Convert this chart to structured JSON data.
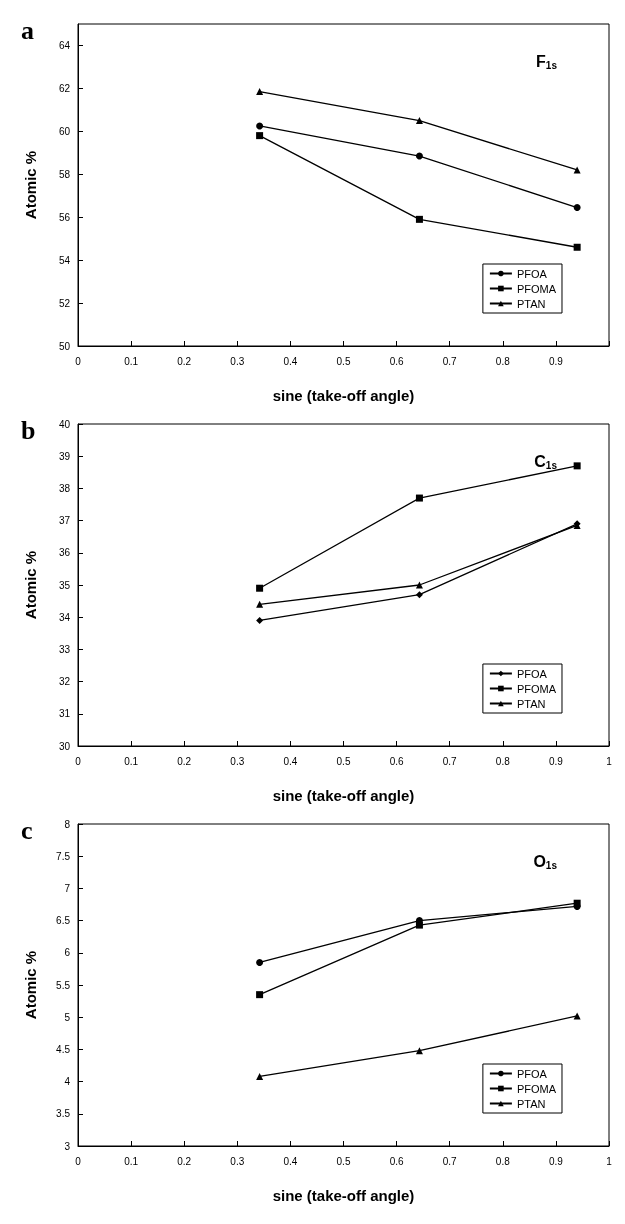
{
  "chart_data": [
    {
      "type": "line",
      "title": "a",
      "xlabel": "sine (take-off angle)",
      "ylabel": "Atomic %",
      "annotations": [
        "F$_{1s}$"
      ],
      "x": [
        0.342,
        0.643,
        0.94
      ],
      "series": [
        {
          "name": "PFOA",
          "color": "#000000",
          "marker": "circle",
          "values": [
            60.25,
            58.85,
            56.45
          ]
        },
        {
          "name": "PFOMA",
          "color": "#000000",
          "marker": "square",
          "values": [
            59.8,
            55.9,
            54.6
          ]
        },
        {
          "name": "PTAN",
          "color": "#000000",
          "marker": "triangle",
          "values": [
            61.85,
            60.5,
            58.2
          ]
        }
      ],
      "xlim": [
        0,
        1
      ],
      "xticks": [
        0,
        0.1,
        0.2,
        0.3,
        0.4,
        0.5,
        0.6,
        0.7,
        0.8,
        0.9,
        {
          "value": 1,
          "label": null
        }
      ],
      "ylim": [
        50,
        65
      ],
      "yticks": [
        50,
        52,
        54,
        56,
        58,
        60,
        62,
        64
      ],
      "grid": false,
      "legend": "bottom right",
      "line_style": "solid"
    },
    {
      "type": "line",
      "title": "b",
      "xlabel": "sine (take-off angle)",
      "ylabel": "Atomic %",
      "annotations": [
        "C$_{1s}$"
      ],
      "x": [
        0.342,
        0.643,
        0.94
      ],
      "series": [
        {
          "name": "PFOA",
          "color": "#000000",
          "marker": "diamond",
          "values": [
            33.9,
            34.7,
            36.9
          ]
        },
        {
          "name": "PFOMA",
          "color": "#000000",
          "marker": "square",
          "values": [
            34.9,
            37.7,
            38.7
          ]
        },
        {
          "name": "PTAN",
          "color": "#000000",
          "marker": "triangle",
          "values": [
            34.4,
            35.0,
            36.85
          ]
        }
      ],
      "xlim": [
        0,
        1
      ],
      "xticks": [
        0,
        0.1,
        0.2,
        0.3,
        0.4,
        0.5,
        0.6,
        0.7,
        0.8,
        0.9,
        1
      ],
      "ylim": [
        30,
        40
      ],
      "yticks": [
        30,
        31,
        32,
        33,
        34,
        35,
        36,
        37,
        38,
        39,
        40
      ],
      "grid": false,
      "legend": "bottom right",
      "line_style": "solid"
    },
    {
      "type": "line",
      "title": "c",
      "xlabel": "sine (take-off angle)",
      "ylabel": "Atomic %",
      "annotations": [
        "O$_{1s}$"
      ],
      "x": [
        0.342,
        0.643,
        0.94
      ],
      "series": [
        {
          "name": "PFOA",
          "color": "#000000",
          "marker": "circle",
          "values": [
            5.85,
            6.5,
            6.72
          ]
        },
        {
          "name": "PFOMA",
          "color": "#000000",
          "marker": "square",
          "values": [
            5.35,
            6.43,
            6.77
          ]
        },
        {
          "name": "PTAN",
          "color": "#000000",
          "marker": "triangle",
          "values": [
            4.08,
            4.48,
            5.02
          ]
        }
      ],
      "xlim": [
        0,
        1
      ],
      "xticks": [
        0,
        0.1,
        0.2,
        0.3,
        0.4,
        0.5,
        0.6,
        0.7,
        0.8,
        0.9,
        1
      ],
      "ylim": [
        3,
        8
      ],
      "yticks": [
        3,
        3.5,
        4,
        4.5,
        5,
        5.5,
        6,
        6.5,
        7,
        7.5,
        8
      ],
      "grid": false,
      "legend": "bottom right",
      "line_style": "solid"
    }
  ]
}
